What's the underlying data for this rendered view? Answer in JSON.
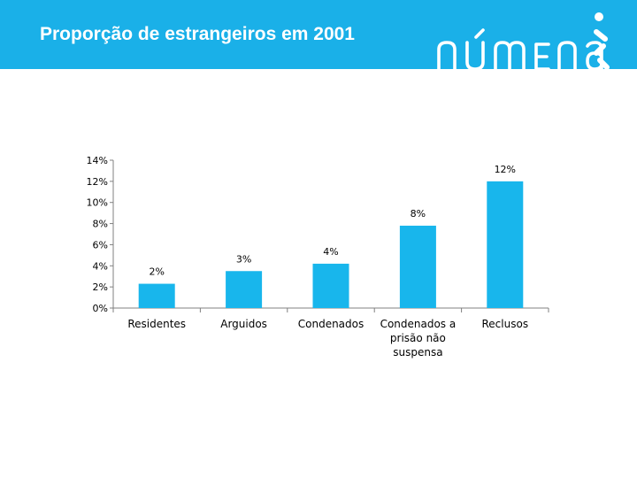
{
  "page": {
    "title": "Proporção de estrangeiros em 2001",
    "logo_text": "númena",
    "header_color": "#1ab0e8"
  },
  "chart_data": {
    "type": "bar",
    "title": "",
    "xlabel": "",
    "ylabel": "",
    "categories": [
      [
        "Residentes"
      ],
      [
        "Arguidos"
      ],
      [
        "Condenados"
      ],
      [
        "Condenados a",
        "prisão não",
        "suspensa"
      ],
      [
        "Reclusos"
      ]
    ],
    "values": [
      2.3,
      3.5,
      4.2,
      7.8,
      12.0
    ],
    "data_labels": [
      "2%",
      "3%",
      "4%",
      "8%",
      "12%"
    ],
    "yticks": [
      "0%",
      "2%",
      "4%",
      "6%",
      "8%",
      "10%",
      "12%",
      "14%"
    ],
    "ylim": [
      0,
      14
    ],
    "bar_color": "#18b6ec",
    "grid": false,
    "legend": "none"
  }
}
